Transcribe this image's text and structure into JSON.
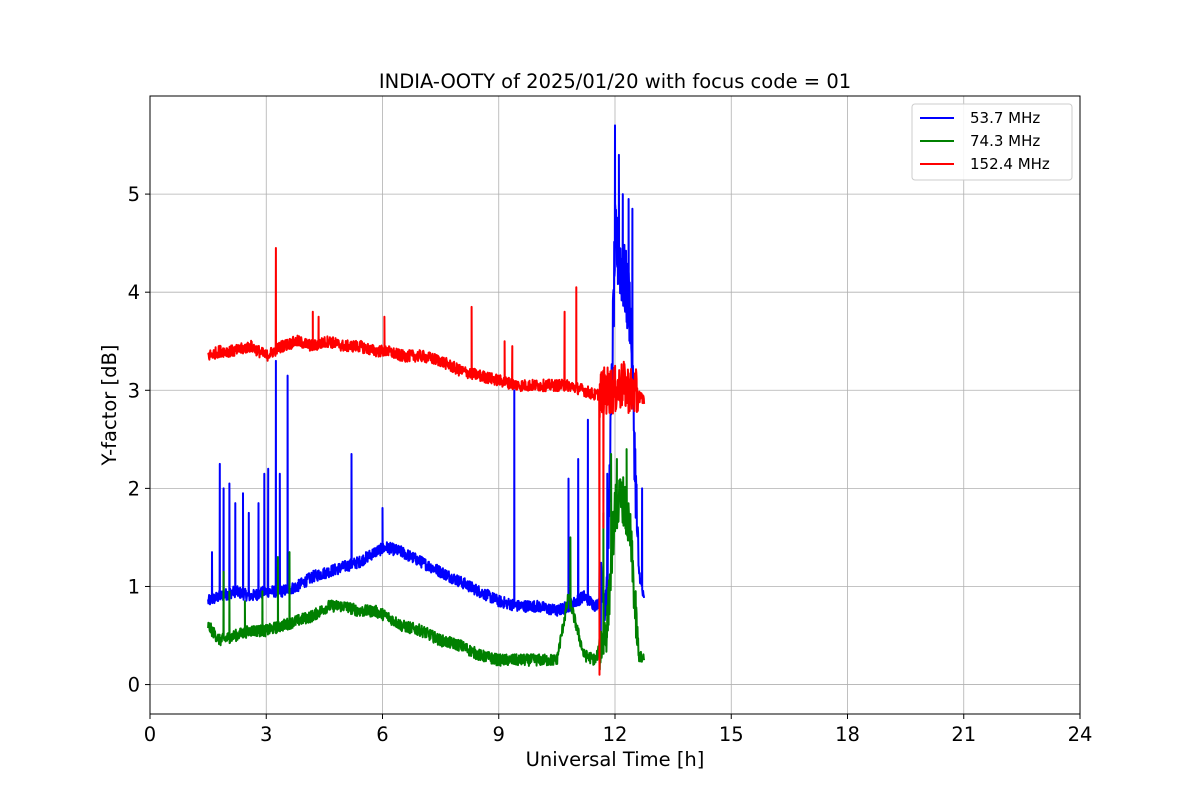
{
  "chart_data": {
    "type": "line",
    "title": "INDIA-OOTY of 2025/01/20 with focus code = 01",
    "xlabel": "Universal Time [h]",
    "ylabel": "Y-factor [dB]",
    "xlim": [
      0,
      24
    ],
    "ylim": [
      -0.3,
      6.0
    ],
    "xticks": [
      0,
      3,
      6,
      9,
      12,
      15,
      18,
      21,
      24
    ],
    "yticks": [
      0,
      1,
      2,
      3,
      4,
      5
    ],
    "grid": true,
    "legend_position": "top-right",
    "series": [
      {
        "name": " 53.7 MHz",
        "color": "#0000ff",
        "x": [
          1.5,
          1.8,
          2.2,
          2.6,
          3.0,
          3.4,
          3.8,
          4.2,
          4.6,
          5.0,
          5.4,
          5.8,
          6.1,
          6.5,
          7.0,
          7.5,
          8.0,
          8.5,
          9.0,
          9.5,
          10.0,
          10.5,
          10.8,
          11.2,
          11.5,
          11.8,
          12.0,
          12.2,
          12.4,
          12.6,
          12.75
        ],
        "y": [
          0.85,
          0.9,
          0.95,
          0.9,
          0.95,
          0.95,
          1.0,
          1.1,
          1.15,
          1.2,
          1.25,
          1.35,
          1.4,
          1.35,
          1.25,
          1.15,
          1.05,
          0.95,
          0.85,
          0.8,
          0.8,
          0.75,
          0.8,
          0.9,
          0.8,
          1.0,
          4.5,
          4.2,
          3.8,
          1.2,
          0.85
        ],
        "spikes": [
          [
            1.6,
            1.35
          ],
          [
            1.8,
            2.25
          ],
          [
            1.9,
            2.0
          ],
          [
            2.05,
            2.05
          ],
          [
            2.2,
            1.85
          ],
          [
            2.4,
            1.95
          ],
          [
            2.55,
            1.75
          ],
          [
            2.8,
            1.85
          ],
          [
            2.95,
            2.15
          ],
          [
            3.05,
            2.2
          ],
          [
            3.25,
            3.3
          ],
          [
            3.35,
            2.15
          ],
          [
            3.55,
            3.15
          ],
          [
            5.2,
            2.35
          ],
          [
            6.0,
            1.8
          ],
          [
            9.4,
            3.0
          ],
          [
            10.8,
            2.1
          ],
          [
            11.05,
            2.3
          ],
          [
            11.3,
            2.7
          ],
          [
            11.8,
            2.15
          ],
          [
            12.0,
            5.7
          ],
          [
            12.1,
            5.4
          ],
          [
            12.2,
            5.0
          ],
          [
            12.35,
            4.95
          ],
          [
            12.45,
            4.85
          ],
          [
            12.7,
            2.0
          ]
        ]
      },
      {
        "name": " 74.3 MHz",
        "color": "#008000",
        "x": [
          1.5,
          1.8,
          2.2,
          2.6,
          3.0,
          3.4,
          3.8,
          4.2,
          4.6,
          5.0,
          5.4,
          5.8,
          6.1,
          6.5,
          7.0,
          7.5,
          8.0,
          8.5,
          9.0,
          9.5,
          10.0,
          10.5,
          10.8,
          11.2,
          11.5,
          11.8,
          12.0,
          12.2,
          12.4,
          12.6,
          12.75
        ],
        "y": [
          0.6,
          0.45,
          0.5,
          0.55,
          0.55,
          0.6,
          0.65,
          0.7,
          0.8,
          0.8,
          0.75,
          0.75,
          0.7,
          0.6,
          0.55,
          0.45,
          0.4,
          0.3,
          0.25,
          0.25,
          0.25,
          0.25,
          0.9,
          0.3,
          0.25,
          0.6,
          1.8,
          1.9,
          1.5,
          0.3,
          0.25
        ],
        "spikes": [
          [
            1.9,
            1.15
          ],
          [
            2.05,
            0.95
          ],
          [
            2.45,
            0.85
          ],
          [
            2.9,
            0.95
          ],
          [
            3.3,
            1.3
          ],
          [
            3.6,
            1.35
          ],
          [
            10.85,
            1.5
          ],
          [
            11.7,
            1.75
          ],
          [
            11.9,
            2.35
          ],
          [
            12.05,
            2.3
          ],
          [
            12.3,
            2.4
          ]
        ]
      },
      {
        "name": "152.4 MHz",
        "color": "#ff0000",
        "x": [
          1.5,
          1.8,
          2.2,
          2.6,
          3.0,
          3.4,
          3.8,
          4.2,
          4.6,
          5.0,
          5.4,
          5.8,
          6.1,
          6.5,
          7.0,
          7.5,
          8.0,
          8.5,
          9.0,
          9.5,
          10.0,
          10.5,
          10.8,
          11.2,
          11.5,
          11.8,
          12.0,
          12.2,
          12.4,
          12.6,
          12.75
        ],
        "y": [
          3.35,
          3.4,
          3.4,
          3.45,
          3.35,
          3.45,
          3.5,
          3.45,
          3.5,
          3.45,
          3.45,
          3.4,
          3.4,
          3.35,
          3.35,
          3.3,
          3.2,
          3.15,
          3.1,
          3.05,
          3.05,
          3.05,
          3.05,
          3.0,
          2.95,
          3.0,
          3.0,
          3.05,
          3.0,
          2.95,
          2.9
        ],
        "spikes": [
          [
            3.25,
            4.45
          ],
          [
            4.2,
            3.8
          ],
          [
            4.35,
            3.75
          ],
          [
            6.05,
            3.75
          ],
          [
            8.3,
            3.85
          ],
          [
            9.15,
            3.5
          ],
          [
            9.35,
            3.45
          ],
          [
            10.7,
            3.8
          ],
          [
            11.0,
            4.05
          ],
          [
            11.6,
            0.1
          ],
          [
            11.7,
            1.6
          ]
        ]
      }
    ]
  }
}
